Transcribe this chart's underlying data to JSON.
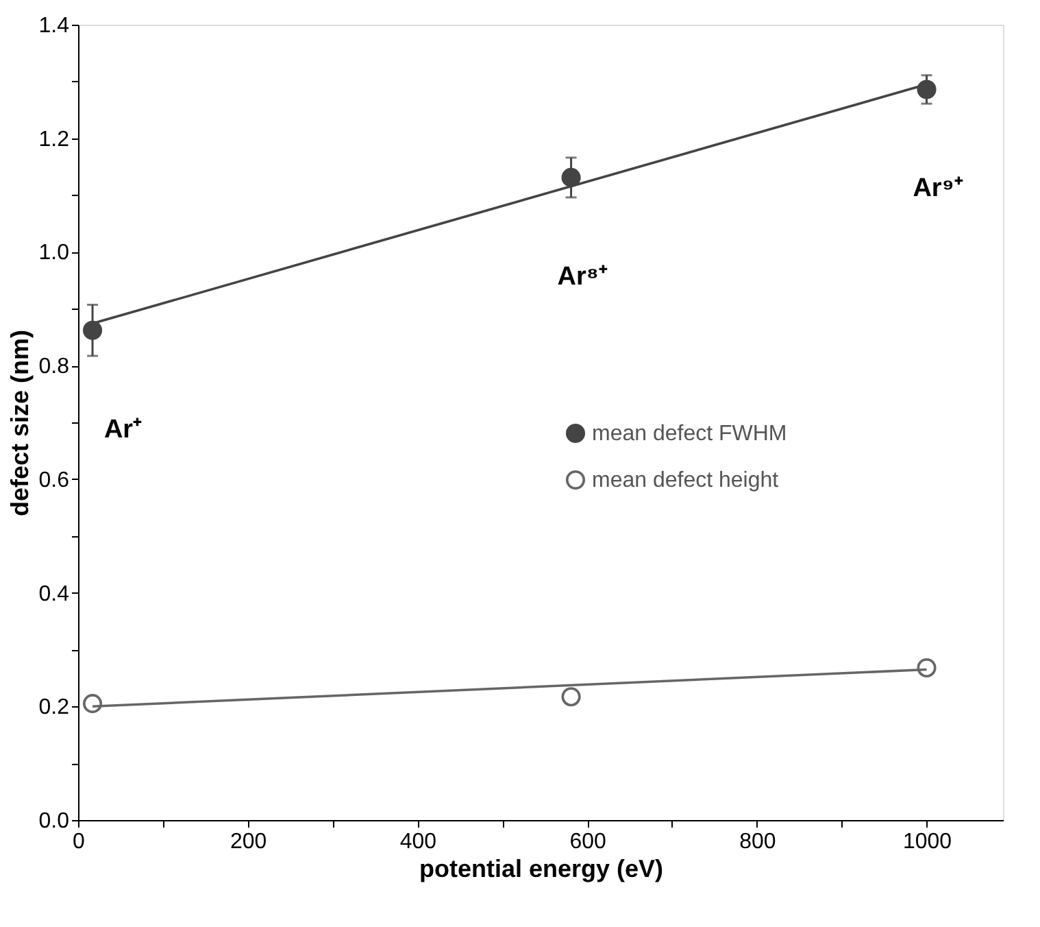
{
  "chart_data": {
    "type": "scatter",
    "xlabel": "potential energy (eV)",
    "ylabel": "defect size (nm)",
    "xlim": [
      0,
      1090
    ],
    "ylim": [
      0,
      1.4
    ],
    "xticks": [
      0,
      {
        "value": 100,
        "label": null
      },
      200,
      {
        "value": 300,
        "label": null
      },
      400,
      {
        "value": 500,
        "label": null
      },
      600,
      {
        "value": 700,
        "label": null
      },
      800,
      {
        "value": 900,
        "label": null
      },
      1000
    ],
    "yticks": [
      {
        "value": 0,
        "label": "0.0"
      },
      {
        "value": 0.1,
        "label": null
      },
      {
        "value": 0.2,
        "label": "0.2"
      },
      {
        "value": 0.3,
        "label": null
      },
      {
        "value": 0.4,
        "label": "0.4"
      },
      {
        "value": 0.5,
        "label": null
      },
      {
        "value": 0.6,
        "label": "0.6"
      },
      {
        "value": 0.7,
        "label": null
      },
      {
        "value": 0.8,
        "label": "0.8"
      },
      {
        "value": 0.9,
        "label": null
      },
      {
        "value": 1.0,
        "label": "1.0"
      },
      {
        "value": 1.1,
        "label": null
      },
      {
        "value": 1.2,
        "label": "1.2"
      },
      {
        "value": 1.3,
        "label": null
      },
      {
        "value": 1.4,
        "label": "1.4"
      }
    ],
    "grid": false,
    "legend": "right",
    "marker": "circle",
    "series": [
      {
        "name": "mean defect FWHM",
        "color": "#444444",
        "x": [
          17,
          581,
          1000
        ],
        "values": [
          0.862,
          1.131,
          1.286
        ],
        "errors": [
          0.045,
          0.035,
          0.025
        ]
      },
      {
        "name": "mean defect height",
        "color": "#666666",
        "x": [
          17,
          581,
          1000
        ],
        "values": [
          0.205,
          0.217,
          0.268
        ]
      },
      {
        "type": "line",
        "color": "#444444",
        "x": [
          17,
          1000
        ],
        "values": [
          0.874,
          1.295
        ],
        "line_style": "solid",
        "marker": "none"
      },
      {
        "type": "line",
        "color": "#666666",
        "x": [
          17,
          1000
        ],
        "values": [
          0.2,
          0.265
        ],
        "line_style": "solid",
        "marker": "none"
      }
    ],
    "annotations": [
      "Ar⁺",
      "Ar⁸⁺",
      "Ar⁹⁺"
    ]
  }
}
